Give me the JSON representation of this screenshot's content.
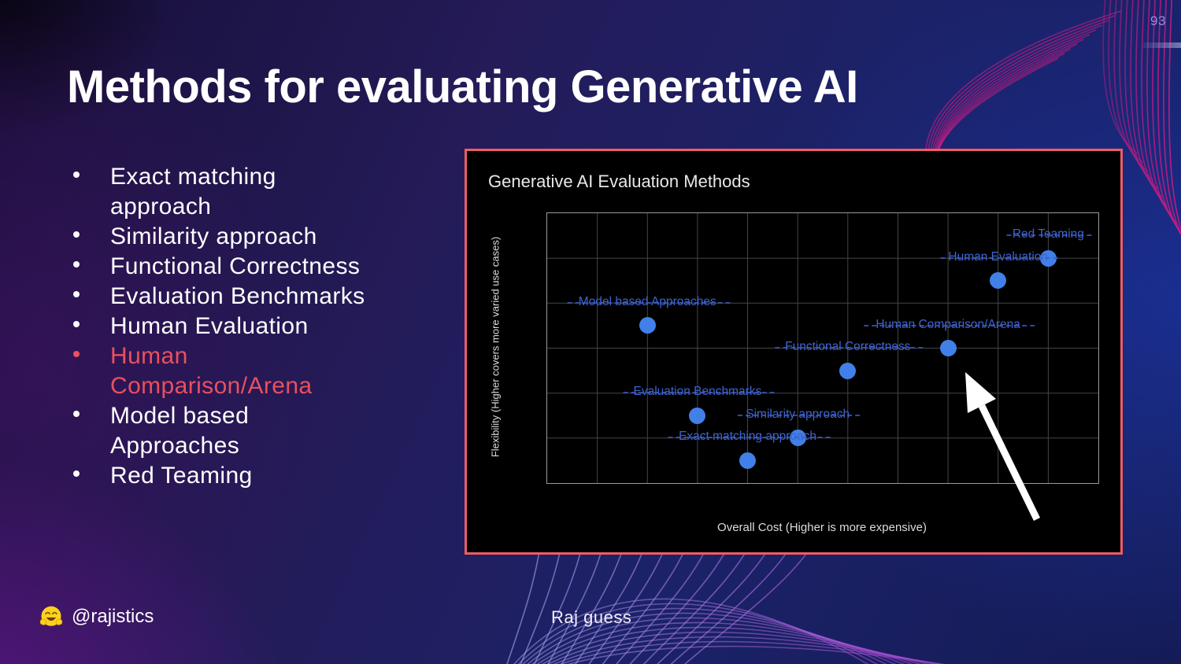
{
  "slide": {
    "page_number": "93",
    "title": "Methods for evaluating Generative AI",
    "accent_color": "#e9505e",
    "bullets": [
      {
        "text": "Exact matching approach",
        "display": "Exact matching\napproach",
        "accent": false
      },
      {
        "text": "Similarity approach",
        "display": "Similarity approach",
        "accent": false
      },
      {
        "text": "Functional Correctness",
        "display": "Functional Correctness",
        "accent": false
      },
      {
        "text": "Evaluation Benchmarks",
        "display": "Evaluation Benchmarks",
        "accent": false
      },
      {
        "text": "Human Evaluation",
        "display": "Human Evaluation",
        "accent": false
      },
      {
        "text": "Human Comparison/Arena",
        "display": "Human\nComparison/Arena",
        "accent": true
      },
      {
        "text": "Model based Approaches",
        "display": "Model based\nApproaches",
        "accent": false
      },
      {
        "text": "Red Teaming",
        "display": "Red Teaming",
        "accent": false
      }
    ],
    "footer": {
      "handle": "@rajistics",
      "handle_icon": "hugging-face-emoji",
      "credit": "Raj guess"
    }
  },
  "chart_data": {
    "type": "scatter",
    "title": "Generative AI Evaluation Methods",
    "xlabel": "Overall Cost (Higher is more expensive)",
    "ylabel": "Flexibility (Higher covers more varied use cases)",
    "x_range": [
      0,
      11
    ],
    "y_range": [
      0,
      6
    ],
    "grid": true,
    "tick_labels_shown": false,
    "legend": "none",
    "frame_color": "#ee5d64",
    "plot_background": "#000000",
    "grid_color": "#454545",
    "point_color": "#4080e8",
    "label_color": "#3e63cf",
    "points": [
      {
        "label": "Exact matching approach",
        "x": 4,
        "y": 0.5
      },
      {
        "label": "Similarity approach",
        "x": 5,
        "y": 1.0
      },
      {
        "label": "Evaluation Benchmarks",
        "x": 3,
        "y": 1.5
      },
      {
        "label": "Model based Approaches",
        "x": 2,
        "y": 3.5
      },
      {
        "label": "Functional Correctness",
        "x": 6,
        "y": 2.5
      },
      {
        "label": "Human Comparison/Arena",
        "x": 8,
        "y": 3.0
      },
      {
        "label": "Human Evaluation",
        "x": 9,
        "y": 4.5
      },
      {
        "label": "Red Teaming",
        "x": 10,
        "y": 5.0
      }
    ],
    "annotation": {
      "type": "arrow",
      "points_to": "Human Comparison/Arena",
      "color": "#ffffff"
    }
  }
}
